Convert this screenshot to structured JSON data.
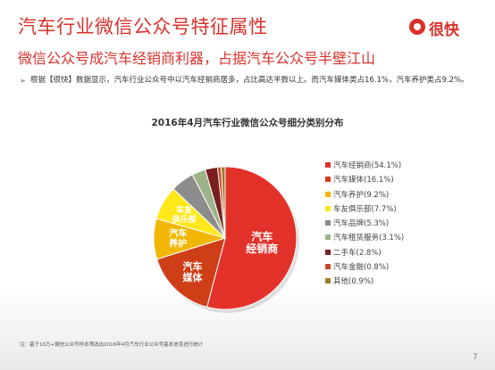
{
  "header": {
    "title": "汽车行业微信公众号特征属性",
    "subtitle": "微信公众号成汽车经销商利器，占据汽车公众号半壁江山"
  },
  "logo": {
    "text": "很快",
    "color": "#d9312b"
  },
  "bullet": {
    "marker": "➢",
    "text": "根据【很快】数据显示，汽车行业公众号中以汽车经销商居多，占比高达半数以上。而汽车媒体类占16.1%，汽车养护类占9.2%。"
  },
  "chart_data": {
    "type": "pie",
    "title": "2016年4月汽车行业微信公众号细分类别分布",
    "legend_position": "right",
    "slices": [
      {
        "name": "汽车经销商",
        "value": 54.1,
        "label": "汽车经销商(54.1%)",
        "slice_label": "汽车\n经销商",
        "color": "#e3322a"
      },
      {
        "name": "汽车媒体",
        "value": 16.1,
        "label": "汽车媒体(16.1%)",
        "slice_label": "汽车\n媒体",
        "color": "#cf3f17"
      },
      {
        "name": "汽车养护",
        "value": 9.2,
        "label": "汽车养护(9.2%)",
        "slice_label": "汽车\n养护",
        "color": "#f2b705"
      },
      {
        "name": "车友俱乐部",
        "value": 7.7,
        "label": "车友俱乐部(7.7%)",
        "slice_label": "车友\n俱乐部",
        "color": "#ffe81a"
      },
      {
        "name": "汽车品牌",
        "value": 5.3,
        "label": "汽车品牌(5.3%)",
        "slice_label": "",
        "color": "#8c8c8c"
      },
      {
        "name": "汽车租赁服务",
        "value": 3.1,
        "label": "汽车租赁服务(3.1%)",
        "slice_label": "",
        "color": "#9fb38a"
      },
      {
        "name": "二手车",
        "value": 2.8,
        "label": "二手车(2.8%)",
        "slice_label": "",
        "color": "#7a1f1f"
      },
      {
        "name": "汽车金融",
        "value": 0.8,
        "label": "汽车金融(0.8%)",
        "slice_label": "",
        "color": "#c74a2e"
      },
      {
        "name": "其他",
        "value": 0.9,
        "label": "其他(0.9%)",
        "slice_label": "",
        "color": "#a07a2a"
      }
    ]
  },
  "footnote": "注：基于10万+微信公众号样本筛选出2016年4月汽车行业公众号基本信息进行统计",
  "page_number": "7"
}
